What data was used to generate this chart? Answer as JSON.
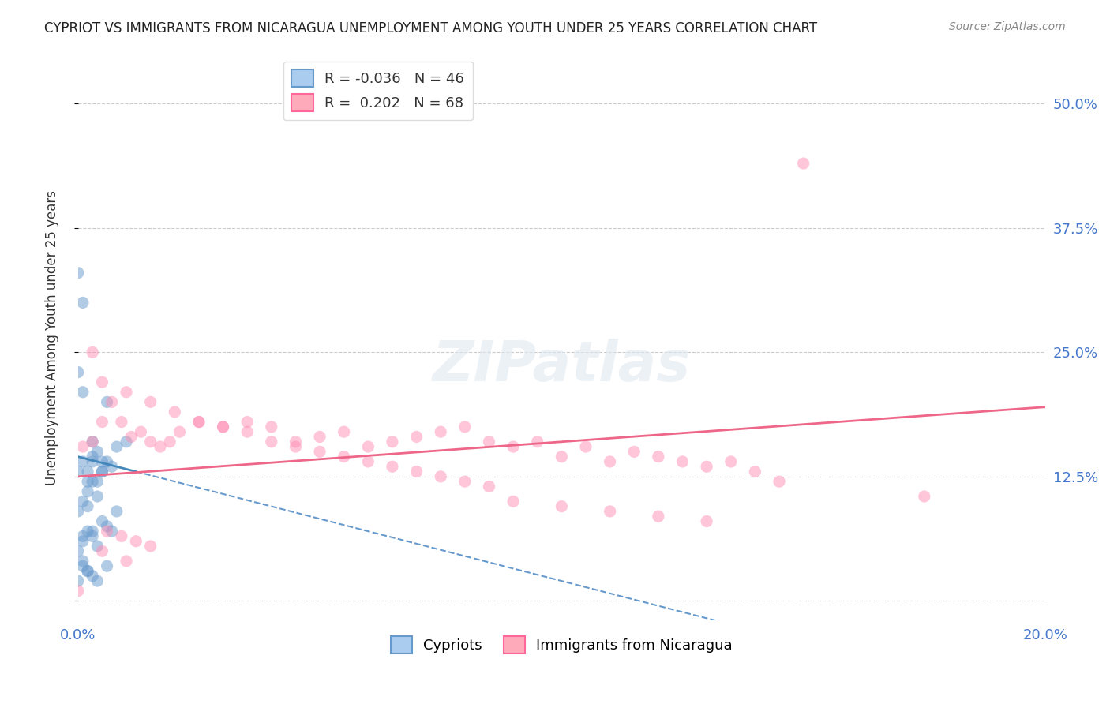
{
  "title": "CYPRIOT VS IMMIGRANTS FROM NICARAGUA UNEMPLOYMENT AMONG YOUTH UNDER 25 YEARS CORRELATION CHART",
  "source": "Source: ZipAtlas.com",
  "ylabel": "Unemployment Among Youth under 25 years",
  "xlabel": "",
  "watermark": "ZIPatlas",
  "legend_entries": [
    {
      "label": "R = -0.036   N = 46",
      "color": "#6699cc"
    },
    {
      "label": "R =  0.202   N = 68",
      "color": "#ff6699"
    }
  ],
  "bottom_legend": [
    "Cypriots",
    "Immigrants from Nicaragua"
  ],
  "cypriot_color": "#6699cc",
  "nicaragua_color": "#ff8cb3",
  "xmin": 0.0,
  "xmax": 0.2,
  "ymin": -0.02,
  "ymax": 0.55,
  "yticks": [
    0.0,
    0.125,
    0.25,
    0.375,
    0.5
  ],
  "ytick_labels": [
    "",
    "12.5%",
    "25.0%",
    "37.5%",
    "50.0%"
  ],
  "xticks": [
    0.0,
    0.05,
    0.1,
    0.15,
    0.2
  ],
  "xtick_labels": [
    "0.0%",
    "",
    "",
    "",
    "20.0%"
  ],
  "cypriot_x": [
    0.005,
    0.002,
    0.003,
    0.008,
    0.001,
    0.0,
    0.004,
    0.006,
    0.0,
    0.001,
    0.003,
    0.01,
    0.005,
    0.002,
    0.007,
    0.0,
    0.001,
    0.003,
    0.004,
    0.005,
    0.006,
    0.008,
    0.002,
    0.001,
    0.0,
    0.003,
    0.002,
    0.004,
    0.006,
    0.001,
    0.003,
    0.0,
    0.001,
    0.002,
    0.005,
    0.007,
    0.003,
    0.004,
    0.001,
    0.002,
    0.0,
    0.003,
    0.006,
    0.001,
    0.002,
    0.004
  ],
  "cypriot_y": [
    0.14,
    0.12,
    0.16,
    0.09,
    0.3,
    0.33,
    0.15,
    0.2,
    0.23,
    0.21,
    0.14,
    0.16,
    0.13,
    0.13,
    0.135,
    0.13,
    0.14,
    0.145,
    0.12,
    0.13,
    0.14,
    0.155,
    0.11,
    0.1,
    0.09,
    0.12,
    0.095,
    0.105,
    0.075,
    0.065,
    0.07,
    0.05,
    0.06,
    0.07,
    0.08,
    0.07,
    0.065,
    0.055,
    0.04,
    0.03,
    0.02,
    0.025,
    0.035,
    0.035,
    0.03,
    0.02
  ],
  "nicaragua_x": [
    0.001,
    0.003,
    0.005,
    0.007,
    0.009,
    0.011,
    0.013,
    0.015,
    0.017,
    0.019,
    0.021,
    0.025,
    0.03,
    0.035,
    0.04,
    0.045,
    0.05,
    0.055,
    0.06,
    0.065,
    0.07,
    0.075,
    0.08,
    0.085,
    0.09,
    0.095,
    0.1,
    0.105,
    0.11,
    0.115,
    0.12,
    0.125,
    0.13,
    0.135,
    0.14,
    0.145,
    0.005,
    0.01,
    0.015,
    0.02,
    0.025,
    0.03,
    0.035,
    0.04,
    0.045,
    0.05,
    0.055,
    0.06,
    0.065,
    0.07,
    0.075,
    0.08,
    0.085,
    0.09,
    0.1,
    0.11,
    0.12,
    0.13,
    0.003,
    0.006,
    0.009,
    0.012,
    0.015,
    0.15,
    0.0,
    0.175,
    0.005,
    0.01
  ],
  "nicaragua_y": [
    0.155,
    0.16,
    0.18,
    0.2,
    0.18,
    0.165,
    0.17,
    0.16,
    0.155,
    0.16,
    0.17,
    0.18,
    0.175,
    0.18,
    0.175,
    0.16,
    0.165,
    0.17,
    0.155,
    0.16,
    0.165,
    0.17,
    0.175,
    0.16,
    0.155,
    0.16,
    0.145,
    0.155,
    0.14,
    0.15,
    0.145,
    0.14,
    0.135,
    0.14,
    0.13,
    0.12,
    0.22,
    0.21,
    0.2,
    0.19,
    0.18,
    0.175,
    0.17,
    0.16,
    0.155,
    0.15,
    0.145,
    0.14,
    0.135,
    0.13,
    0.125,
    0.12,
    0.115,
    0.1,
    0.095,
    0.09,
    0.085,
    0.08,
    0.25,
    0.07,
    0.065,
    0.06,
    0.055,
    0.44,
    0.01,
    0.105,
    0.05,
    0.04
  ],
  "cypriot_R": -0.036,
  "nicaragua_R": 0.202,
  "cypriot_line_x": [
    0.0,
    0.012
  ],
  "cypriot_line_y_start": 0.145,
  "cypriot_line_y_end": 0.13,
  "nicaragua_line_x": [
    0.0,
    0.2
  ],
  "nicaragua_line_y_start": 0.125,
  "nicaragua_line_y_end": 0.195
}
